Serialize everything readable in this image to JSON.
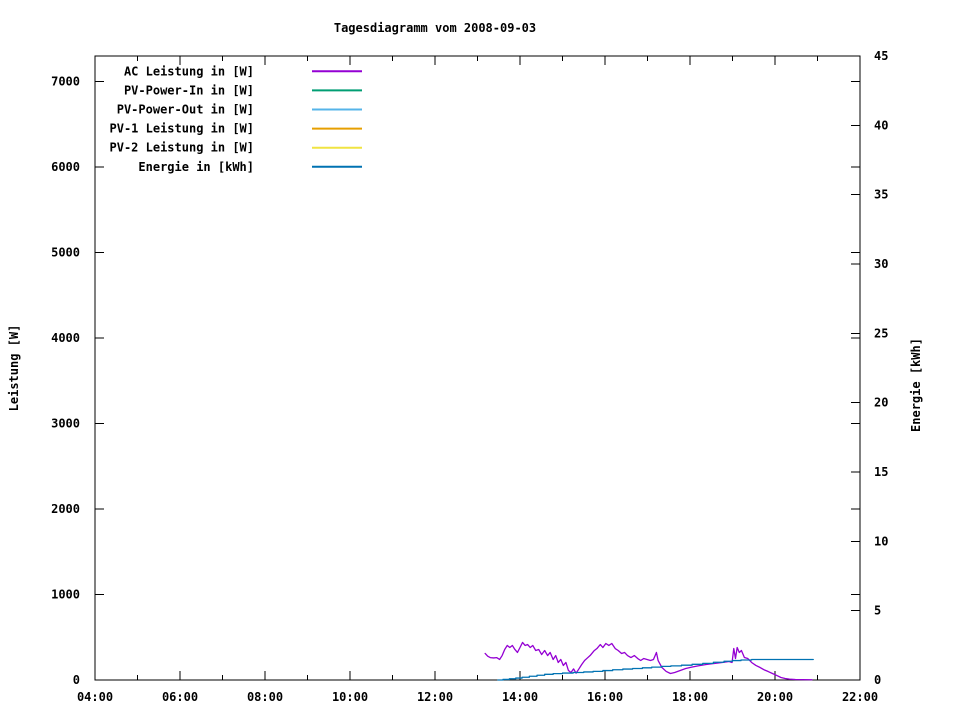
{
  "title": "Tagesdiagramm vom 2008-09-03",
  "chart_data": {
    "type": "line",
    "title": "Tagesdiagramm vom 2008-09-03",
    "background": "#ffffff",
    "border_color": "#000000",
    "grid": false,
    "legend_position": "top-left-inside",
    "x_axis": {
      "kind": "time-of-day",
      "range_hours": [
        4,
        22
      ],
      "major_tick_hours": [
        4,
        6,
        8,
        10,
        12,
        14,
        16,
        18,
        20,
        22
      ],
      "major_tick_labels": [
        "04:00",
        "06:00",
        "08:00",
        "10:00",
        "12:00",
        "14:00",
        "16:00",
        "18:00",
        "20:00",
        "22:00"
      ],
      "minor_tick_hours": [
        5,
        7,
        9,
        11,
        13,
        15,
        17,
        19,
        21
      ]
    },
    "y_left": {
      "label": "Leistung [W]",
      "range": [
        0,
        7298
      ],
      "tick_values": [
        0,
        1000,
        2000,
        3000,
        4000,
        5000,
        6000,
        7000
      ]
    },
    "y_right": {
      "label": "Energie [kWh]",
      "range": [
        0,
        45
      ],
      "tick_values": [
        0,
        5,
        10,
        15,
        20,
        25,
        30,
        35,
        40,
        45
      ]
    },
    "legend": [
      {
        "label": "AC Leistung in [W]",
        "color": "#9400d3"
      },
      {
        "label": "PV-Power-In in [W]",
        "color": "#009e73"
      },
      {
        "label": "PV-Power-Out in [W]",
        "color": "#56b4e9"
      },
      {
        "label": "PV-1 Leistung in [W]",
        "color": "#e69f00"
      },
      {
        "label": "PV-2 Leistung in [W]",
        "color": "#f0e442"
      },
      {
        "label": "Energie in [kWh]",
        "color": "#0072b2"
      }
    ],
    "series": [
      {
        "name": "AC Leistung in [W]",
        "color": "#9400d3",
        "axis": "left",
        "style": "line",
        "points": [
          [
            13.18,
            310
          ],
          [
            13.24,
            278
          ],
          [
            13.3,
            262
          ],
          [
            13.38,
            258
          ],
          [
            13.45,
            262
          ],
          [
            13.52,
            240
          ],
          [
            13.58,
            286
          ],
          [
            13.64,
            357
          ],
          [
            13.7,
            404
          ],
          [
            13.76,
            380
          ],
          [
            13.82,
            404
          ],
          [
            13.88,
            357
          ],
          [
            13.94,
            322
          ],
          [
            14.0,
            380
          ],
          [
            14.06,
            439
          ],
          [
            14.12,
            404
          ],
          [
            14.18,
            415
          ],
          [
            14.24,
            380
          ],
          [
            14.3,
            404
          ],
          [
            14.37,
            345
          ],
          [
            14.44,
            357
          ],
          [
            14.51,
            298
          ],
          [
            14.58,
            345
          ],
          [
            14.65,
            286
          ],
          [
            14.71,
            322
          ],
          [
            14.78,
            240
          ],
          [
            14.84,
            286
          ],
          [
            14.9,
            205
          ],
          [
            14.96,
            240
          ],
          [
            15.02,
            170
          ],
          [
            15.08,
            205
          ],
          [
            15.14,
            111
          ],
          [
            15.2,
            88
          ],
          [
            15.26,
            130
          ],
          [
            15.32,
            80
          ],
          [
            15.38,
            125
          ],
          [
            15.45,
            180
          ],
          [
            15.52,
            228
          ],
          [
            15.58,
            255
          ],
          [
            15.65,
            286
          ],
          [
            15.74,
            340
          ],
          [
            15.81,
            368
          ],
          [
            15.89,
            415
          ],
          [
            15.95,
            380
          ],
          [
            16.02,
            427
          ],
          [
            16.09,
            404
          ],
          [
            16.16,
            427
          ],
          [
            16.24,
            368
          ],
          [
            16.31,
            345
          ],
          [
            16.39,
            310
          ],
          [
            16.46,
            322
          ],
          [
            16.53,
            286
          ],
          [
            16.61,
            263
          ],
          [
            16.69,
            286
          ],
          [
            16.77,
            251
          ],
          [
            16.84,
            228
          ],
          [
            16.91,
            251
          ],
          [
            16.99,
            240
          ],
          [
            17.07,
            228
          ],
          [
            17.14,
            240
          ],
          [
            17.21,
            322
          ],
          [
            17.25,
            228
          ],
          [
            17.34,
            146
          ],
          [
            17.44,
            100
          ],
          [
            17.54,
            76
          ],
          [
            17.64,
            88
          ],
          [
            17.77,
            111
          ],
          [
            17.9,
            135
          ],
          [
            18.04,
            150
          ],
          [
            18.19,
            165
          ],
          [
            18.38,
            181
          ],
          [
            18.57,
            193
          ],
          [
            18.76,
            205
          ],
          [
            18.92,
            216
          ],
          [
            18.99,
            205
          ],
          [
            19.03,
            368
          ],
          [
            19.07,
            251
          ],
          [
            19.11,
            380
          ],
          [
            19.16,
            322
          ],
          [
            19.21,
            345
          ],
          [
            19.28,
            263
          ],
          [
            19.36,
            251
          ],
          [
            19.45,
            205
          ],
          [
            19.55,
            170
          ],
          [
            19.65,
            146
          ],
          [
            19.74,
            120
          ],
          [
            19.84,
            99
          ],
          [
            19.94,
            76
          ],
          [
            20.04,
            53
          ],
          [
            20.14,
            29
          ],
          [
            20.24,
            18
          ],
          [
            20.34,
            10
          ],
          [
            20.48,
            6
          ],
          [
            20.65,
            4
          ],
          [
            20.87,
            3
          ]
        ]
      },
      {
        "name": "PV-Power-In in [W]",
        "color": "#009e73",
        "axis": "left",
        "style": "line",
        "points": []
      },
      {
        "name": "PV-Power-Out in [W]",
        "color": "#56b4e9",
        "axis": "left",
        "style": "line",
        "points": []
      },
      {
        "name": "PV-1 Leistung in [W]",
        "color": "#e69f00",
        "axis": "left",
        "style": "line",
        "points": []
      },
      {
        "name": "PV-2 Leistung in [W]",
        "color": "#f0e442",
        "axis": "left",
        "style": "line",
        "points": []
      },
      {
        "name": "Energie in [kWh]",
        "color": "#0072b2",
        "axis": "right",
        "style": "steps",
        "points": [
          [
            13.48,
            0.0
          ],
          [
            13.6,
            0.04
          ],
          [
            13.75,
            0.09
          ],
          [
            13.9,
            0.14
          ],
          [
            14.05,
            0.2
          ],
          [
            14.22,
            0.27
          ],
          [
            14.4,
            0.34
          ],
          [
            14.58,
            0.41
          ],
          [
            14.78,
            0.46
          ],
          [
            15.0,
            0.5
          ],
          [
            15.25,
            0.54
          ],
          [
            15.5,
            0.58
          ],
          [
            15.72,
            0.62
          ],
          [
            15.95,
            0.68
          ],
          [
            16.18,
            0.74
          ],
          [
            16.42,
            0.79
          ],
          [
            16.65,
            0.83
          ],
          [
            16.88,
            0.88
          ],
          [
            17.1,
            0.93
          ],
          [
            17.33,
            0.98
          ],
          [
            17.55,
            1.02
          ],
          [
            17.8,
            1.07
          ],
          [
            18.05,
            1.13
          ],
          [
            18.3,
            1.2
          ],
          [
            18.55,
            1.28
          ],
          [
            18.8,
            1.35
          ],
          [
            19.0,
            1.4
          ],
          [
            19.2,
            1.44
          ],
          [
            19.45,
            1.48
          ],
          [
            20.9,
            1.48
          ]
        ]
      }
    ]
  }
}
